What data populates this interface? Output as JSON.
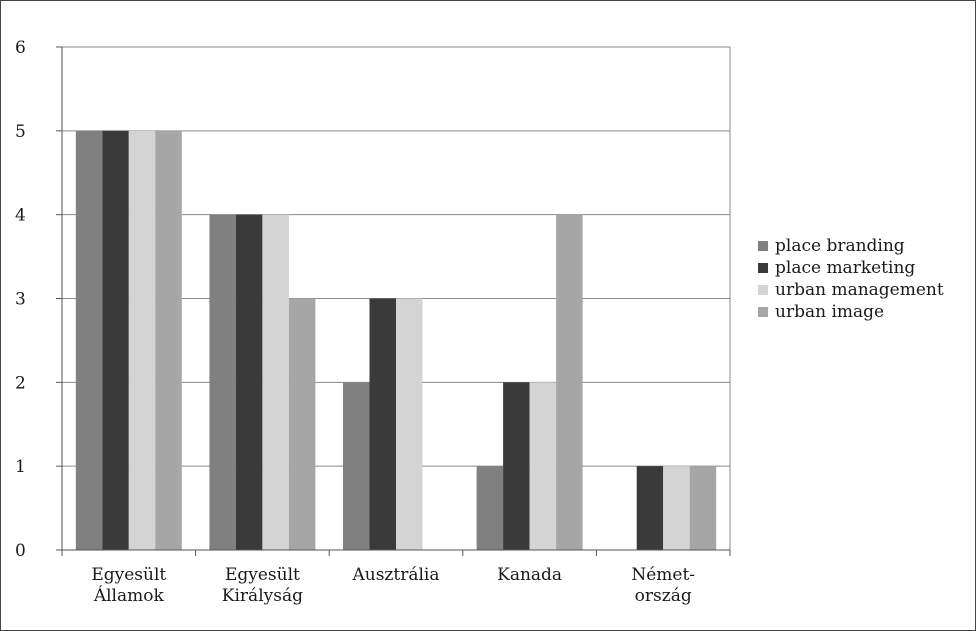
{
  "chart_data": {
    "type": "bar",
    "categories": [
      [
        "Egyesült",
        "Államok"
      ],
      [
        "Egyesült",
        "Királyság"
      ],
      [
        "Ausztrália"
      ],
      [
        "Kanada"
      ],
      [
        "Német-",
        "ország"
      ]
    ],
    "series": [
      {
        "name": "place branding",
        "color": "#808080",
        "values": [
          5,
          4,
          2,
          1,
          0
        ]
      },
      {
        "name": "place marketing",
        "color": "#3a3a3a",
        "values": [
          5,
          4,
          3,
          2,
          1
        ]
      },
      {
        "name": "urban management",
        "color": "#d4d4d4",
        "values": [
          5,
          4,
          3,
          2,
          1
        ]
      },
      {
        "name": "urban image",
        "color": "#a6a6a6",
        "values": [
          5,
          3,
          0,
          4,
          1
        ]
      }
    ],
    "ylim": [
      0,
      6
    ],
    "yticks": [
      0,
      1,
      2,
      3,
      4,
      5,
      6
    ],
    "grid": true,
    "legend_position": "right",
    "title": "",
    "xlabel": "",
    "ylabel": ""
  }
}
